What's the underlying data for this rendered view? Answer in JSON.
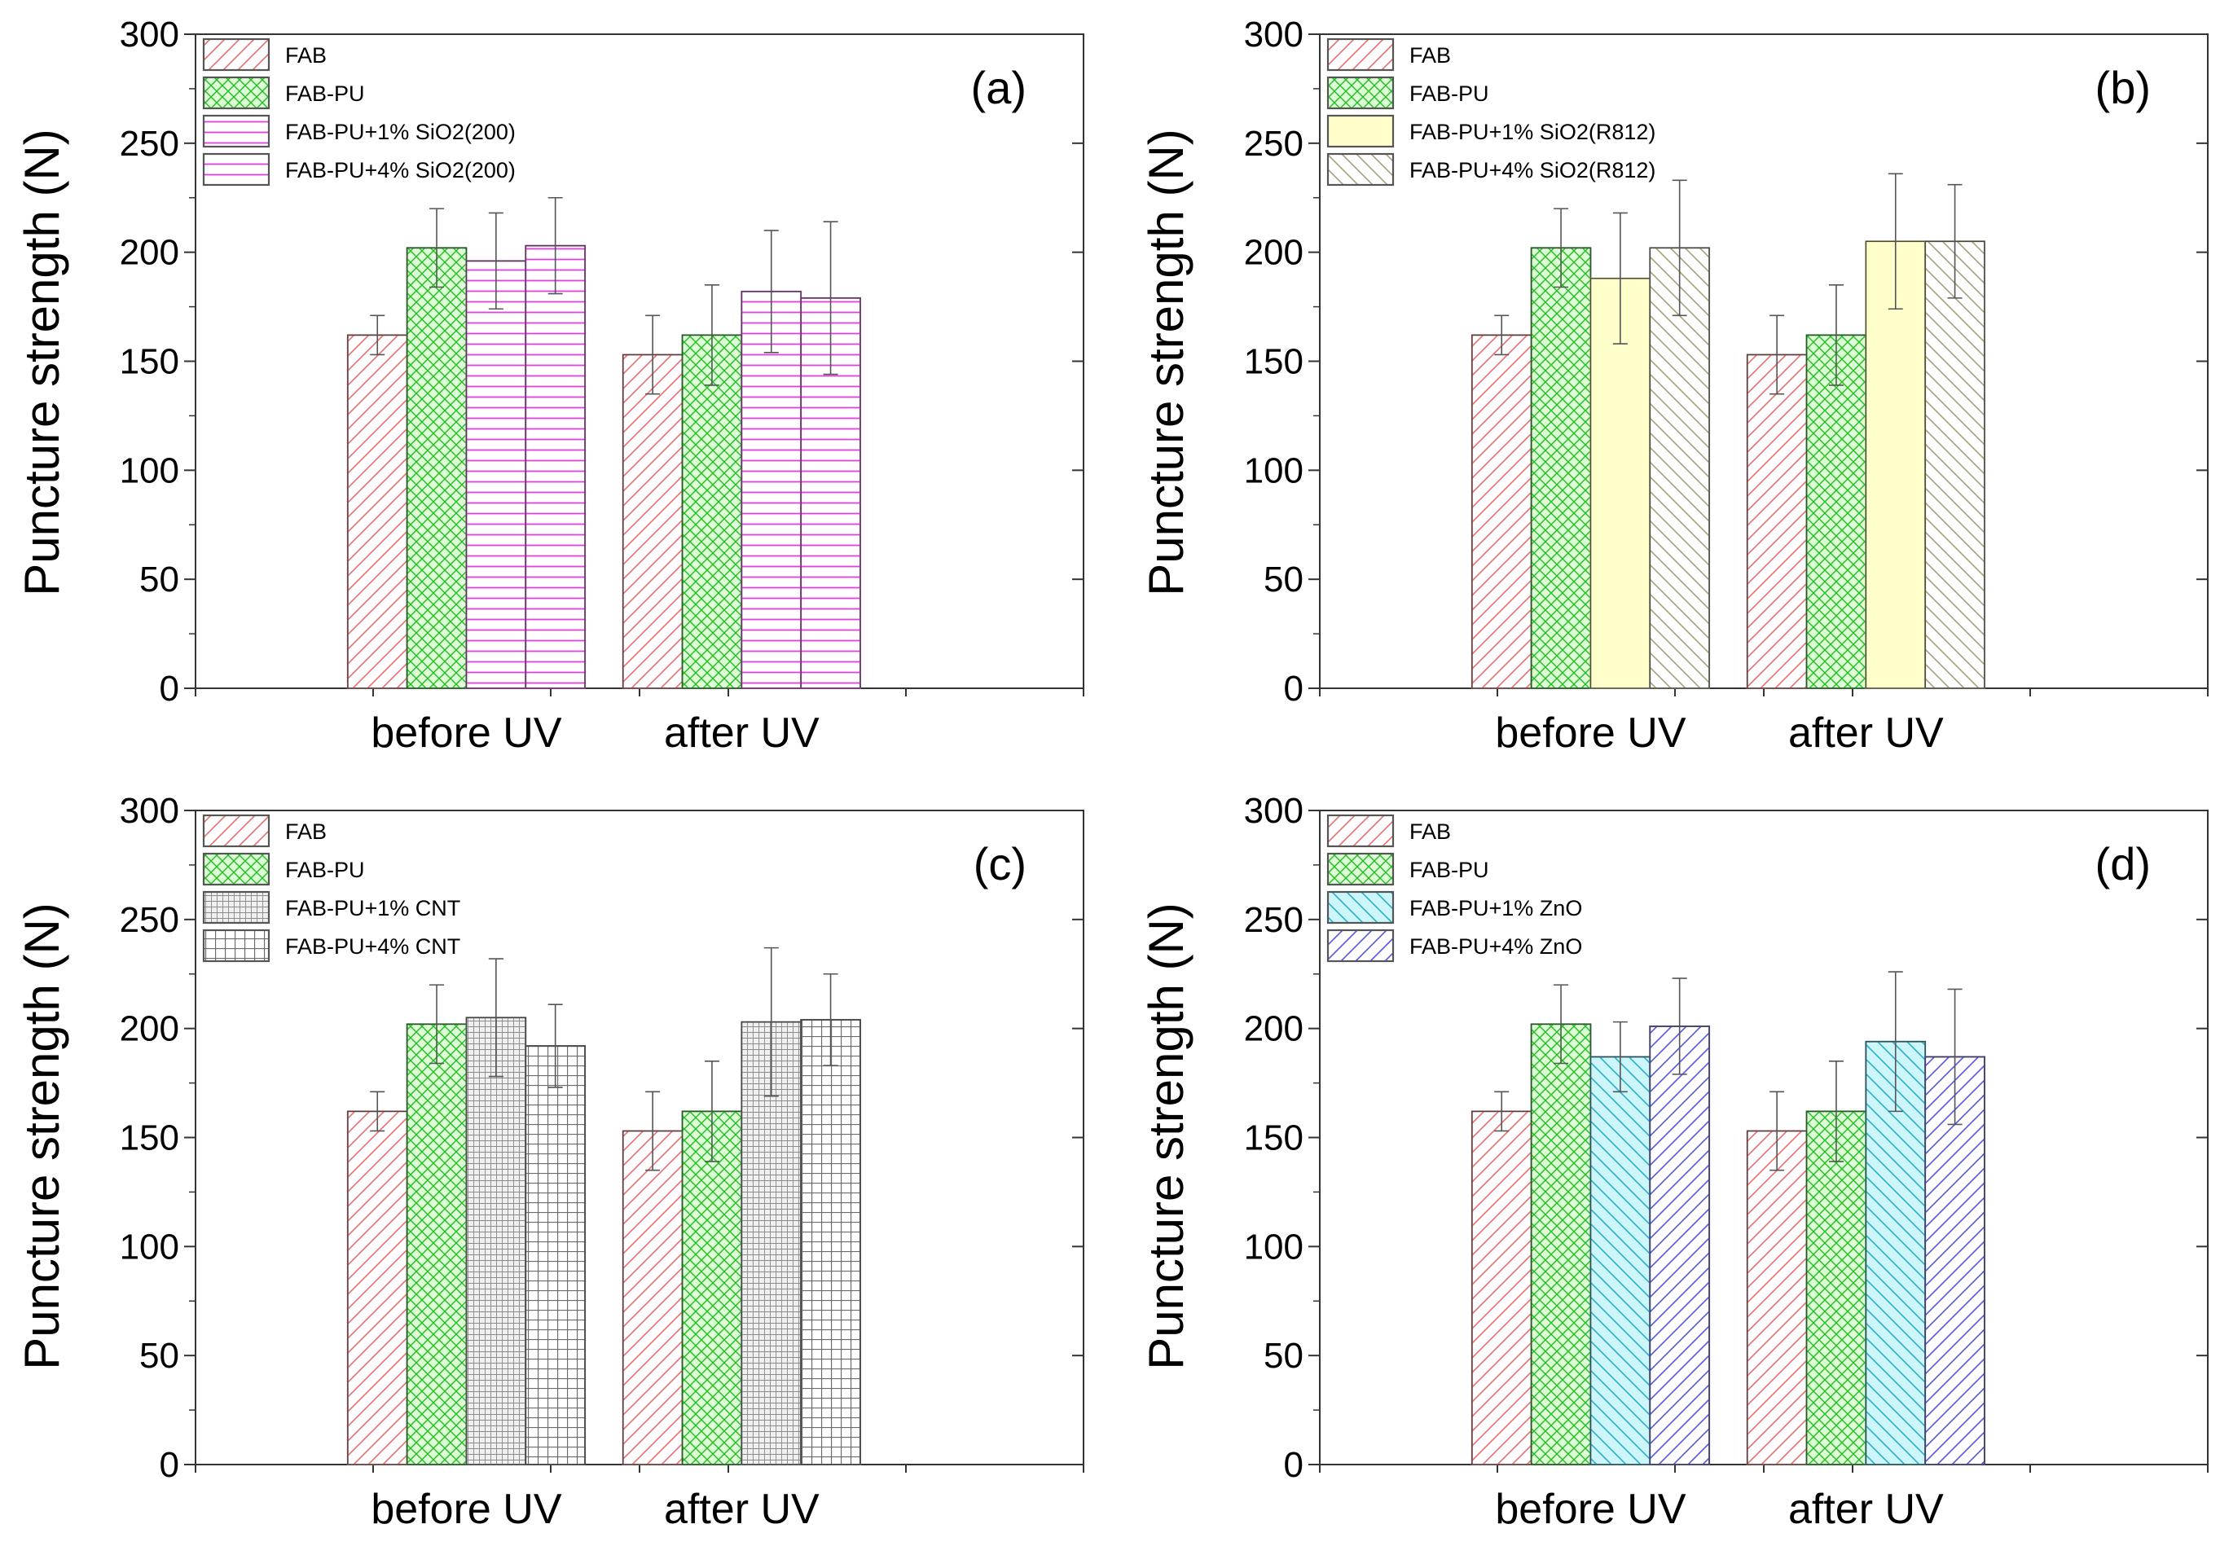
{
  "figure": {
    "y_label": "Puncture strength (N)"
  },
  "chart_data": [
    {
      "type": "bar",
      "panel_label": "(a)",
      "ylabel": "Puncture strength (N)",
      "ylim": [
        0,
        300
      ],
      "yticks": [
        "0",
        "50",
        "100",
        "150",
        "200",
        "250",
        "300"
      ],
      "categories": [
        "before UV",
        "after UV"
      ],
      "series": [
        {
          "name": "FAB",
          "values": [
            162,
            153
          ],
          "errors": [
            9,
            18
          ],
          "color": "#e8706e",
          "fill": "#ffffff",
          "pattern": "diag-fwd"
        },
        {
          "name": "FAB-PU",
          "values": [
            202,
            162
          ],
          "errors": [
            18,
            23
          ],
          "color": "#22bb22",
          "fill": "#ddffd5",
          "pattern": "cross-diag"
        },
        {
          "name": "FAB-PU+1% SiO2(200)",
          "values": [
            196,
            182
          ],
          "errors": [
            22,
            28
          ],
          "color": "#e040e0",
          "fill": "#ffffff",
          "pattern": "horiz"
        },
        {
          "name": "FAB-PU+4% SiO2(200)",
          "values": [
            203,
            179
          ],
          "errors": [
            22,
            35
          ],
          "color": "#e040e0",
          "fill": "#ffffff",
          "pattern": "horiz"
        }
      ],
      "legend_position": "top-left"
    },
    {
      "type": "bar",
      "panel_label": "(b)",
      "ylabel": "Puncture strength (N)",
      "ylim": [
        0,
        300
      ],
      "yticks": [
        "0",
        "50",
        "100",
        "150",
        "200",
        "250",
        "300"
      ],
      "categories": [
        "before UV",
        "after UV"
      ],
      "series": [
        {
          "name": "FAB",
          "values": [
            162,
            153
          ],
          "errors": [
            9,
            18
          ],
          "color": "#e8706e",
          "fill": "#ffffff",
          "pattern": "diag-fwd"
        },
        {
          "name": "FAB-PU",
          "values": [
            202,
            162
          ],
          "errors": [
            18,
            23
          ],
          "color": "#22bb22",
          "fill": "#ddffd5",
          "pattern": "cross-diag"
        },
        {
          "name": "FAB-PU+1% SiO2(R812)",
          "values": [
            188,
            205
          ],
          "errors": [
            30,
            31
          ],
          "color": "#d8cc7a",
          "fill": "#ffffcc",
          "pattern": "solid"
        },
        {
          "name": "FAB-PU+4% SiO2(R812)",
          "values": [
            202,
            205
          ],
          "errors": [
            31,
            26
          ],
          "color": "#a7a07a",
          "fill": "#ffffff",
          "pattern": "diag-back"
        }
      ],
      "legend_position": "top-left"
    },
    {
      "type": "bar",
      "panel_label": "(c)",
      "ylabel": "Puncture strength (N)",
      "ylim": [
        0,
        300
      ],
      "yticks": [
        "0",
        "50",
        "100",
        "150",
        "200",
        "250",
        "300"
      ],
      "categories": [
        "before UV",
        "after UV"
      ],
      "series": [
        {
          "name": "FAB",
          "values": [
            162,
            153
          ],
          "errors": [
            9,
            18
          ],
          "color": "#e8706e",
          "fill": "#ffffff",
          "pattern": "diag-fwd"
        },
        {
          "name": "FAB-PU",
          "values": [
            202,
            162
          ],
          "errors": [
            18,
            23
          ],
          "color": "#22bb22",
          "fill": "#ddffd5",
          "pattern": "cross-diag"
        },
        {
          "name": "FAB-PU+1% CNT",
          "values": [
            205,
            203
          ],
          "errors": [
            27,
            34
          ],
          "color": "#8a8a8a",
          "fill": "#f0f0f0",
          "pattern": "grid-fine"
        },
        {
          "name": "FAB-PU+4% CNT",
          "values": [
            192,
            204
          ],
          "errors": [
            19,
            21
          ],
          "color": "#6a6a6a",
          "fill": "#ffffff",
          "pattern": "grid-coarse"
        }
      ],
      "legend_position": "top-left"
    },
    {
      "type": "bar",
      "panel_label": "(d)",
      "ylabel": "Puncture strength (N)",
      "ylim": [
        0,
        300
      ],
      "yticks": [
        "0",
        "50",
        "100",
        "150",
        "200",
        "250",
        "300"
      ],
      "categories": [
        "before UV",
        "after UV"
      ],
      "series": [
        {
          "name": "FAB",
          "values": [
            162,
            153
          ],
          "errors": [
            9,
            18
          ],
          "color": "#e8706e",
          "fill": "#ffffff",
          "pattern": "diag-fwd"
        },
        {
          "name": "FAB-PU",
          "values": [
            202,
            162
          ],
          "errors": [
            18,
            23
          ],
          "color": "#22bb22",
          "fill": "#ddffd5",
          "pattern": "cross-diag"
        },
        {
          "name": "FAB-PU+1% ZnO",
          "values": [
            187,
            194
          ],
          "errors": [
            16,
            32
          ],
          "color": "#2ab0c8",
          "fill": "#ccf6fa",
          "pattern": "diag-back"
        },
        {
          "name": "FAB-PU+4% ZnO",
          "values": [
            201,
            187
          ],
          "errors": [
            22,
            31
          ],
          "color": "#5555dd",
          "fill": "#ffffff",
          "pattern": "diag-fwd"
        }
      ],
      "legend_position": "top-left"
    }
  ]
}
